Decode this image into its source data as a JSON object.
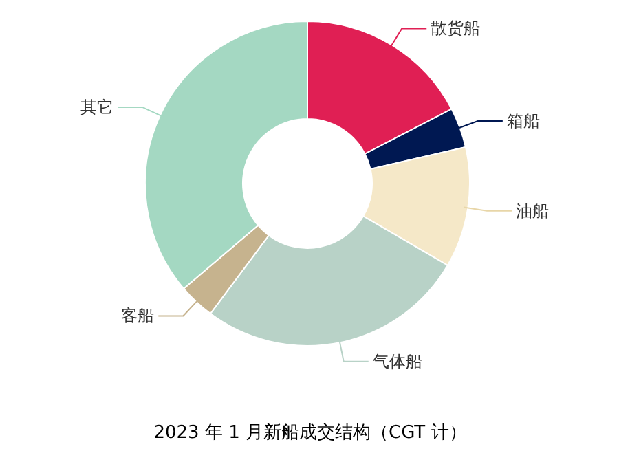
{
  "chart_data": {
    "type": "donut",
    "title": "2023 年 1 月新船成交结构（CGT 计）",
    "categories": [
      "散货船",
      "箱船",
      "油船",
      "气体船",
      "客船",
      "其它"
    ],
    "values": [
      17.4,
      4.0,
      12.0,
      26.8,
      3.6,
      36.2
    ],
    "colors": [
      "#e01f54",
      "#001852",
      "#f5e8c8",
      "#b8d2c7",
      "#c6b38e",
      "#a4d8c2"
    ]
  }
}
